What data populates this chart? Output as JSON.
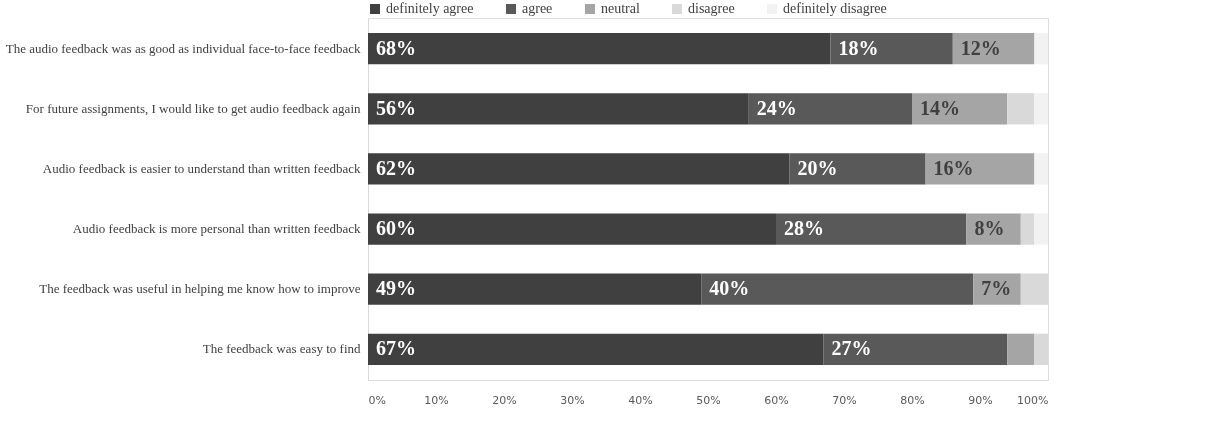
{
  "chart_data": {
    "type": "bar",
    "orientation": "horizontal",
    "stacked": true,
    "categories": [
      "The audio feedback was as good as individual face-to-face feedback",
      "For future assignments, I would like to get audio feedback again",
      "Audio feedback is easier to understand than written feedback",
      "Audio feedback is more personal than written feedback",
      "The feedback was useful in helping me know how to improve",
      "The feedback was easy to find"
    ],
    "series": [
      {
        "name": "definitely agree",
        "color": "#404040",
        "values": [
          68,
          56,
          62,
          60,
          49,
          67
        ],
        "value_labels": [
          "68%",
          "56%",
          "62%",
          "60%",
          "49%",
          "67%"
        ]
      },
      {
        "name": "agree",
        "color": "#595959",
        "values": [
          18,
          24,
          20,
          28,
          40,
          27
        ],
        "value_labels": [
          "18%",
          "24%",
          "20%",
          "28%",
          "40%",
          "27%"
        ]
      },
      {
        "name": "neutral",
        "color": "#a5a5a5",
        "values": [
          12,
          14,
          16,
          8,
          7,
          4
        ],
        "value_labels": [
          "12%",
          "14%",
          "16%",
          "8%",
          "7%",
          null
        ]
      },
      {
        "name": "disagree",
        "color": "#d9d9d9",
        "values": [
          0,
          4,
          0,
          2,
          4,
          2
        ],
        "value_labels": [
          null,
          null,
          null,
          null,
          null,
          null
        ]
      },
      {
        "name": "definitely disagree",
        "color": "#f2f2f2",
        "values": [
          2,
          2,
          2,
          2,
          0,
          0
        ],
        "value_labels": [
          null,
          null,
          null,
          null,
          null,
          null
        ]
      }
    ],
    "xlim": [
      0,
      100
    ],
    "xticks": [
      {
        "value": 0,
        "label": "0%"
      },
      {
        "value": 10,
        "label": "10%"
      },
      {
        "value": 20,
        "label": "20%"
      },
      {
        "value": 30,
        "label": "30%"
      },
      {
        "value": 40,
        "label": "40%"
      },
      {
        "value": 50,
        "label": "50%"
      },
      {
        "value": 60,
        "label": "60%"
      },
      {
        "value": 70,
        "label": "70%"
      },
      {
        "value": 80,
        "label": "80%"
      },
      {
        "value": 90,
        "label": "90%"
      },
      {
        "value": 100,
        "label": "100%"
      }
    ],
    "grid": false,
    "legend": "top"
  }
}
